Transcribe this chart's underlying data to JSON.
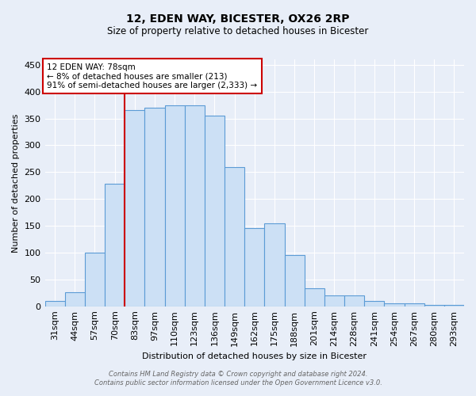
{
  "title": "12, EDEN WAY, BICESTER, OX26 2RP",
  "subtitle": "Size of property relative to detached houses in Bicester",
  "xlabel": "Distribution of detached houses by size in Bicester",
  "ylabel": "Number of detached properties",
  "categories": [
    "31sqm",
    "44sqm",
    "57sqm",
    "70sqm",
    "83sqm",
    "97sqm",
    "110sqm",
    "123sqm",
    "136sqm",
    "149sqm",
    "162sqm",
    "175sqm",
    "188sqm",
    "201sqm",
    "214sqm",
    "228sqm",
    "241sqm",
    "254sqm",
    "267sqm",
    "280sqm",
    "293sqm"
  ],
  "values": [
    10,
    26,
    100,
    228,
    365,
    370,
    375,
    375,
    355,
    260,
    146,
    155,
    95,
    33,
    20,
    20,
    10,
    5,
    5,
    3,
    3
  ],
  "bar_color": "#cce0f5",
  "bar_edge_color": "#5b9bd5",
  "marker_label": "12 EDEN WAY: 78sqm",
  "annotation_line1": "← 8% of detached houses are smaller (213)",
  "annotation_line2": "91% of semi-detached houses are larger (2,333) →",
  "annotation_box_color": "#ffffff",
  "annotation_box_edge": "#cc0000",
  "marker_line_color": "#cc0000",
  "ylim": [
    0,
    460
  ],
  "yticks": [
    0,
    50,
    100,
    150,
    200,
    250,
    300,
    350,
    400,
    450
  ],
  "footer_line1": "Contains HM Land Registry data © Crown copyright and database right 2024.",
  "footer_line2": "Contains public sector information licensed under the Open Government Licence v3.0.",
  "bg_color": "#e8eef8",
  "grid_color": "#ffffff",
  "title_fontsize": 10,
  "subtitle_fontsize": 8.5,
  "axis_label_fontsize": 8,
  "tick_fontsize": 8,
  "footer_fontsize": 6
}
